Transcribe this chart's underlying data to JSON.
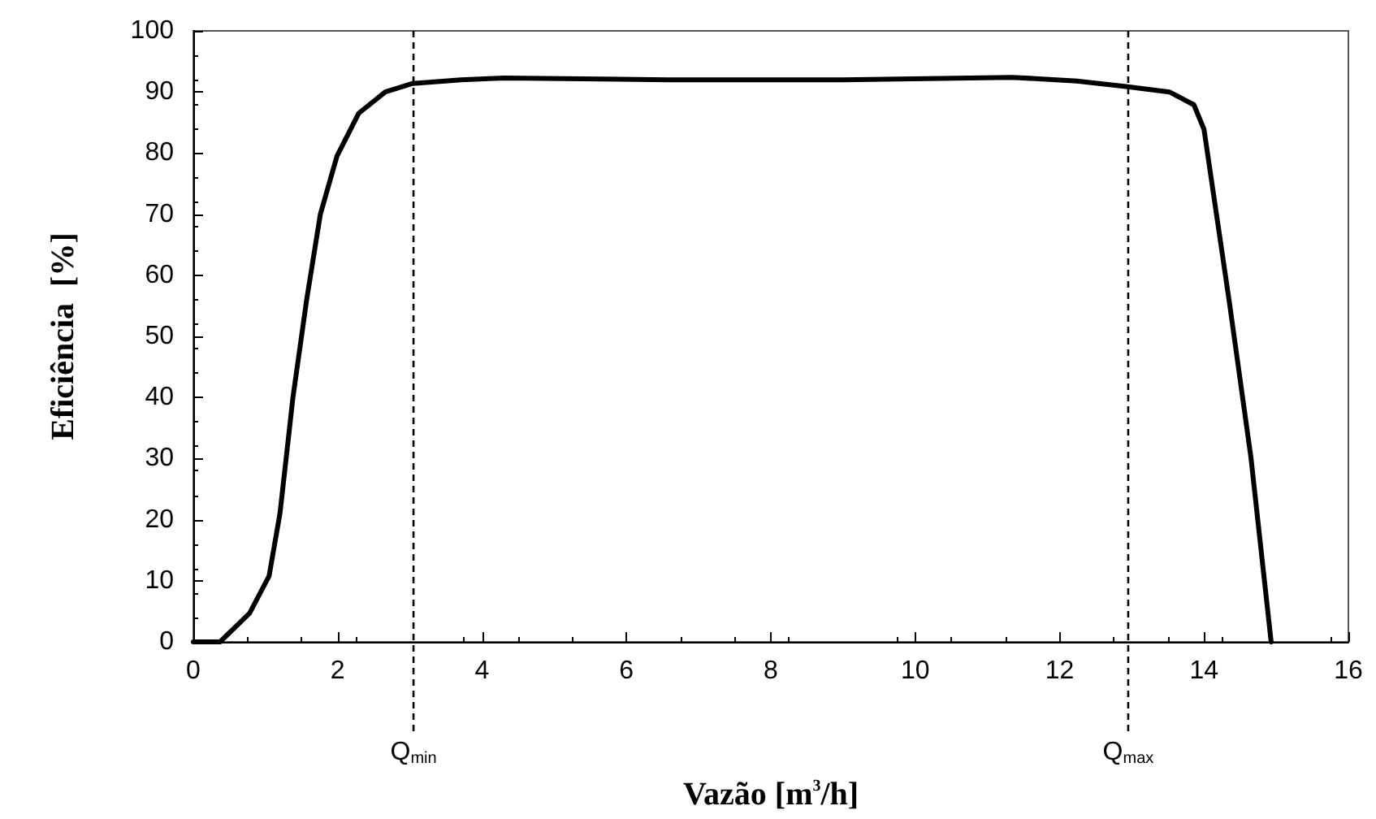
{
  "chart_data": {
    "type": "line",
    "xlabel": "Vazão [m$^{3}$/h]",
    "ylabel": "Eficiência  [%]",
    "x": [
      0,
      0.37,
      0.78,
      1.05,
      1.2,
      1.38,
      1.57,
      1.76,
      1.99,
      2.29,
      2.66,
      3.04,
      3.71,
      4.3,
      6.57,
      9,
      11.34,
      12.24,
      12.92,
      13.52,
      13.86,
      14.0,
      14.35,
      14.65,
      14.93
    ],
    "series": [
      {
        "color": "#000000",
        "values": [
          0,
          0,
          4.7,
          10.8,
          21,
          40,
          56,
          70,
          79.5,
          86.5,
          90,
          91.4,
          92,
          92.3,
          92,
          92,
          92.4,
          91.8,
          90.9,
          90,
          87.9,
          83.9,
          55.7,
          30.2,
          0
        ]
      }
    ],
    "xlim": [
      0,
      16
    ],
    "xticks": [
      0,
      2,
      4,
      6,
      8,
      10,
      12,
      14,
      16
    ],
    "ylim": [
      0,
      100
    ],
    "yticks": [
      0,
      10,
      20,
      30,
      40,
      50,
      60,
      70,
      80,
      90,
      100
    ],
    "ref_lines": [
      {
        "axis": "x",
        "value": 3.05,
        "label": "Q$_{min}$",
        "color": "#000000",
        "line_style": "dashed"
      },
      {
        "axis": "x",
        "value": 12.95,
        "label": "Q$_{max}$",
        "color": "#000000",
        "line_style": "dashed"
      }
    ],
    "grid": false,
    "marker": "none",
    "line_style": "solid"
  }
}
